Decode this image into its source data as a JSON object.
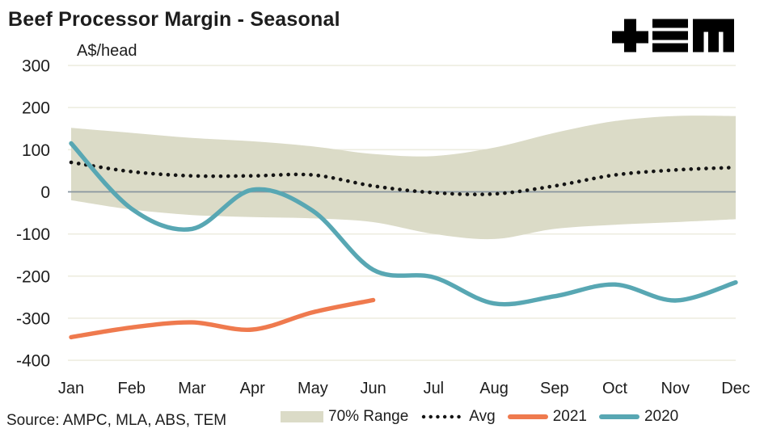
{
  "header": {
    "title": "Beef Processor Margin - Seasonal",
    "logo": "TEM"
  },
  "chart_data": {
    "type": "line",
    "title": "Beef Processor Margin - Seasonal",
    "ylabel": "A$/head",
    "x_categories": [
      "Jan",
      "Feb",
      "Mar",
      "Apr",
      "May",
      "Jun",
      "Jul",
      "Aug",
      "Sep",
      "Oct",
      "Nov",
      "Dec"
    ],
    "y_ticks": [
      300,
      200,
      100,
      0,
      -100,
      -200,
      -300,
      -400
    ],
    "ylim": [
      -400,
      300
    ],
    "grid": true,
    "legend_position": "bottom",
    "zero_line": true,
    "band": {
      "name": "70% Range",
      "color": "#dbdbc7",
      "upper": [
        152,
        140,
        128,
        120,
        108,
        90,
        85,
        105,
        140,
        168,
        180,
        180
      ],
      "lower": [
        -20,
        -42,
        -55,
        -60,
        -63,
        -72,
        -100,
        -112,
        -88,
        -78,
        -72,
        -65
      ]
    },
    "series": [
      {
        "name": "Avg",
        "style": "dotted",
        "color": "#141414",
        "values": [
          70,
          48,
          38,
          38,
          40,
          14,
          -2,
          -5,
          14,
          40,
          52,
          58
        ]
      },
      {
        "name": "2021",
        "style": "solid",
        "color": "#ef7a4e",
        "values": [
          -345,
          -322,
          -310,
          -327,
          -286,
          -257
        ]
      },
      {
        "name": "2020",
        "style": "solid",
        "color": "#58a7b3",
        "values": [
          115,
          -40,
          -88,
          5,
          -45,
          -185,
          -203,
          -265,
          -248,
          -220,
          -258,
          -215
        ]
      }
    ],
    "source": "Source: AMPC, MLA, ABS, TEM"
  },
  "colors": {
    "grid": "#eeede0",
    "zero_line": "#8996a0",
    "text": "#1d1d1d",
    "logo": "#1a1a1a"
  }
}
